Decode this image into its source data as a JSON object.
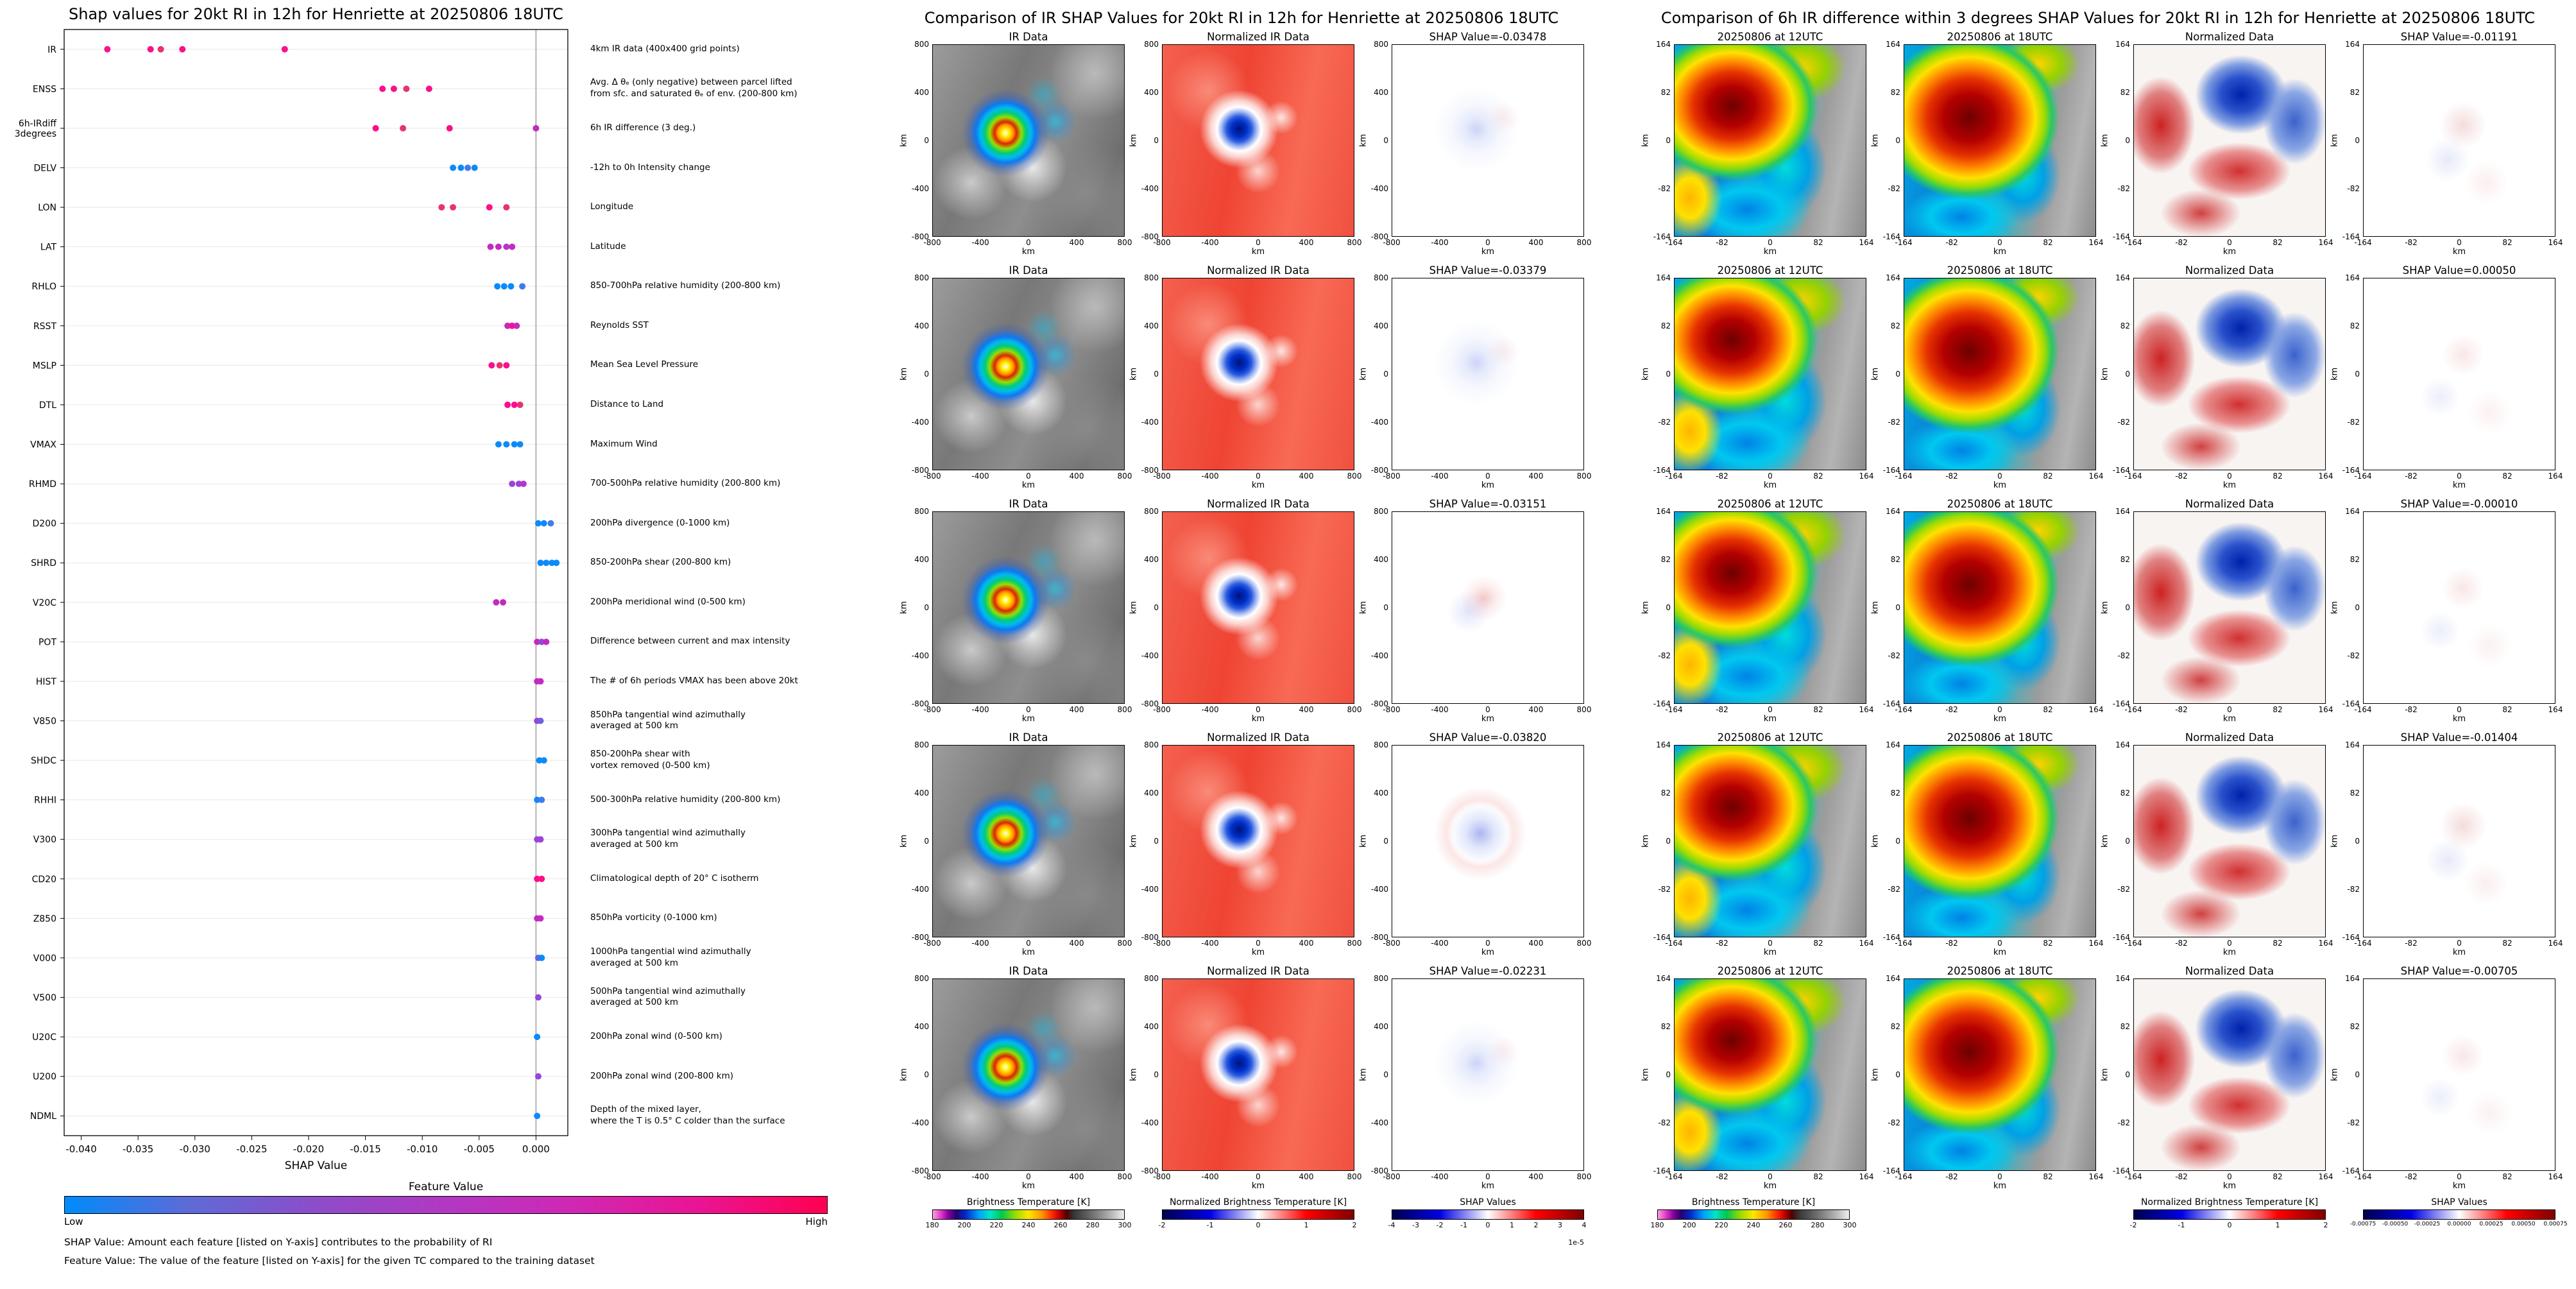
{
  "colors": {
    "background": "#ffffff",
    "zero_line": "#9a9a9a",
    "low_color": "#008bfb",
    "high_color": "#ff0051"
  },
  "chart_data": {
    "type": "scatter",
    "title": "Shap values for 20kt RI in 12h for Henriette at 20250806 18UTC",
    "xlabel": "SHAP Value",
    "xlim": [
      -0.0415,
      0.0028
    ],
    "x_ticks": [
      {
        "v": -0.04,
        "label": "-0.040"
      },
      {
        "v": -0.035,
        "label": "-0.035"
      },
      {
        "v": -0.03,
        "label": "-0.030"
      },
      {
        "v": -0.025,
        "label": "-0.025"
      },
      {
        "v": -0.02,
        "label": "-0.020"
      },
      {
        "v": -0.015,
        "label": "-0.015"
      },
      {
        "v": -0.01,
        "label": "-0.010"
      },
      {
        "v": -0.005,
        "label": "-0.005"
      },
      {
        "v": 0.0,
        "label": "0.000"
      }
    ],
    "colorbar": {
      "title": "Feature Value",
      "low_label": "Low",
      "high_label": "High",
      "stops": [
        "#008bfb",
        "#5f6ad6",
        "#8e4cc9",
        "#b238c3",
        "#cf28b4",
        "#ea1493",
        "#ff0051"
      ]
    },
    "footnotes": [
      "SHAP Value: Amount each feature [listed on Y-axis] contributes to the probability of RI",
      "Feature Value: The value of the feature [listed on Y-axis] for the given TC compared to the training dataset"
    ],
    "features": [
      {
        "label": "IR",
        "desc": "4km IR data (400x400 grid points)",
        "points": [
          [
            -0.0377,
            "#fb0f8c"
          ],
          [
            -0.0339,
            "#fb0f8c"
          ],
          [
            -0.033,
            "#e7336f"
          ],
          [
            -0.0311,
            "#fb0f8c"
          ],
          [
            -0.0221,
            "#fb0f8c"
          ]
        ]
      },
      {
        "label": "ENSS",
        "desc": "Avg. Δ θₑ (only negative) between parcel lifted\nfrom sfc. and saturated θₑ of env. (200-800 km)",
        "points": [
          [
            -0.0135,
            "#fb0f8c"
          ],
          [
            -0.0125,
            "#fb0f8c"
          ],
          [
            -0.0114,
            "#e7336f"
          ],
          [
            -0.0094,
            "#fb0f8c"
          ]
        ]
      },
      {
        "label": "6h-IRdiff\n3degrees",
        "desc": "6h IR difference (3 deg.)",
        "points": [
          [
            -0.0141,
            "#fb0f8c"
          ],
          [
            -0.0117,
            "#e7336f"
          ],
          [
            -0.0076,
            "#fb0f8c"
          ],
          [
            0.0,
            "#c32bc0"
          ]
        ]
      },
      {
        "label": "DELV",
        "desc": "-12h to 0h Intensity change",
        "points": [
          [
            -0.0073,
            "#0c8af9"
          ],
          [
            -0.0066,
            "#0c8af9"
          ],
          [
            -0.006,
            "#3f7bef"
          ],
          [
            -0.0054,
            "#0c8af9"
          ]
        ]
      },
      {
        "label": "LON",
        "desc": "Longitude",
        "points": [
          [
            -0.0083,
            "#e7336f"
          ],
          [
            -0.0073,
            "#e7336f"
          ],
          [
            -0.0041,
            "#fb0f8c"
          ],
          [
            -0.0026,
            "#e7336f"
          ]
        ]
      },
      {
        "label": "LAT",
        "desc": "Latitude",
        "points": [
          [
            -0.004,
            "#c32bc0"
          ],
          [
            -0.0033,
            "#c32bc0"
          ],
          [
            -0.0026,
            "#b535cd"
          ],
          [
            -0.0021,
            "#c32bc0"
          ]
        ]
      },
      {
        "label": "RHLO",
        "desc": "850-700hPa relative humidity (200-800 km)",
        "points": [
          [
            -0.0034,
            "#0c8af9"
          ],
          [
            -0.0028,
            "#0c8af9"
          ],
          [
            -0.0022,
            "#0c8af9"
          ],
          [
            -0.0012,
            "#3f7bef"
          ]
        ]
      },
      {
        "label": "RSST",
        "desc": "Reynolds SST",
        "points": [
          [
            -0.0025,
            "#c32bc0"
          ],
          [
            -0.0021,
            "#fb0f8c"
          ],
          [
            -0.0017,
            "#c32bc0"
          ]
        ]
      },
      {
        "label": "MSLP",
        "desc": "Mean Sea Level Pressure",
        "points": [
          [
            -0.0039,
            "#fb0f8c"
          ],
          [
            -0.0032,
            "#e7336f"
          ],
          [
            -0.0026,
            "#fb0f8c"
          ]
        ]
      },
      {
        "label": "DTL",
        "desc": "Distance to Land",
        "points": [
          [
            -0.0025,
            "#fb0f8c"
          ],
          [
            -0.0019,
            "#fb0f8c"
          ],
          [
            -0.0014,
            "#e7336f"
          ]
        ]
      },
      {
        "label": "VMAX",
        "desc": "Maximum Wind",
        "points": [
          [
            -0.0033,
            "#0c8af9"
          ],
          [
            -0.0026,
            "#0c8af9"
          ],
          [
            -0.0019,
            "#0c8af9"
          ],
          [
            -0.0014,
            "#0c8af9"
          ]
        ]
      },
      {
        "label": "RHMD",
        "desc": "700-500hPa relative humidity (200-800 km)",
        "points": [
          [
            -0.0021,
            "#9a44d8"
          ],
          [
            -0.0015,
            "#9a44d8"
          ],
          [
            -0.0011,
            "#b535cd"
          ]
        ]
      },
      {
        "label": "D200",
        "desc": "200hPa divergence (0-1000 km)",
        "points": [
          [
            0.0002,
            "#0c8af9"
          ],
          [
            0.0007,
            "#0c8af9"
          ],
          [
            0.0013,
            "#3f7bef"
          ]
        ]
      },
      {
        "label": "SHRD",
        "desc": "850-200hPa shear (200-800 km)",
        "points": [
          [
            0.0004,
            "#0c8af9"
          ],
          [
            0.0009,
            "#0c8af9"
          ],
          [
            0.0014,
            "#0c8af9"
          ],
          [
            0.0018,
            "#0c8af9"
          ]
        ]
      },
      {
        "label": "V20C",
        "desc": "200hPa meridional wind (0-500 km)",
        "points": [
          [
            -0.0035,
            "#c32bc0"
          ],
          [
            -0.0029,
            "#c32bc0"
          ]
        ]
      },
      {
        "label": "POT",
        "desc": "Difference between current and max intensity",
        "points": [
          [
            0.0001,
            "#c32bc0"
          ],
          [
            0.0005,
            "#9a44d8"
          ],
          [
            0.0009,
            "#c32bc0"
          ]
        ]
      },
      {
        "label": "HIST",
        "desc": "The # of 6h periods VMAX has been above 20kt",
        "points": [
          [
            0.0001,
            "#c32bc0"
          ],
          [
            0.0004,
            "#c32bc0"
          ]
        ]
      },
      {
        "label": "V850",
        "desc": "850hPa tangential wind azimuthally\naveraged at 500 km",
        "points": [
          [
            0.0001,
            "#9a44d8"
          ],
          [
            0.0004,
            "#6a60e2"
          ]
        ]
      },
      {
        "label": "SHDC",
        "desc": "850-200hPa shear with\nvortex removed (0-500 km)",
        "points": [
          [
            0.0003,
            "#0c8af9"
          ],
          [
            0.0007,
            "#0c8af9"
          ]
        ]
      },
      {
        "label": "RHHI",
        "desc": "500-300hPa relative humidity (200-800 km)",
        "points": [
          [
            0.0001,
            "#0c8af9"
          ],
          [
            0.0005,
            "#3f7bef"
          ]
        ]
      },
      {
        "label": "V300",
        "desc": "300hPa tangential wind azimuthally\naveraged at 500 km",
        "points": [
          [
            0.0001,
            "#9a44d8"
          ],
          [
            0.0004,
            "#9a44d8"
          ]
        ]
      },
      {
        "label": "CD20",
        "desc": "Climatological depth of 20° C isotherm",
        "points": [
          [
            0.0001,
            "#fb0f8c"
          ],
          [
            0.0005,
            "#fb0f8c"
          ]
        ]
      },
      {
        "label": "Z850",
        "desc": "850hPa vorticity (0-1000 km)",
        "points": [
          [
            0.0001,
            "#c32bc0"
          ],
          [
            0.0004,
            "#c32bc0"
          ]
        ]
      },
      {
        "label": "V000",
        "desc": "1000hPa tangential wind azimuthally\naveraged at 500 km",
        "points": [
          [
            0.0002,
            "#6a60e2"
          ],
          [
            0.0005,
            "#0c8af9"
          ]
        ]
      },
      {
        "label": "V500",
        "desc": "500hPa tangential wind azimuthally\naveraged at 500 km",
        "points": [
          [
            0.0002,
            "#9a44d8"
          ]
        ]
      },
      {
        "label": "U20C",
        "desc": "200hPa zonal wind (0-500 km)",
        "points": [
          [
            0.0001,
            "#0c8af9"
          ]
        ]
      },
      {
        "label": "U200",
        "desc": "200hPa zonal wind (200-800 km)",
        "points": [
          [
            0.0002,
            "#9a44d8"
          ]
        ]
      },
      {
        "label": "NDML",
        "desc": "Depth of the mixed layer,\nwhere the T is 0.5° C colder than the surface",
        "points": [
          [
            0.0001,
            "#0c8af9"
          ]
        ]
      }
    ]
  },
  "middle_panel": {
    "title": "Comparison of IR SHAP Values for 20kt RI in 12h for Henriette at 20250806 18UTC",
    "axis_label": "km",
    "tick_labels": [
      "-800",
      "-400",
      "0",
      "400",
      "800"
    ],
    "tile_kinds": [
      "ir",
      "nir",
      "shapm"
    ],
    "rows": [
      {
        "titles": [
          "IR Data",
          "Normalized IR Data",
          "SHAP Value=-0.03478"
        ]
      },
      {
        "titles": [
          "IR Data",
          "Normalized IR Data",
          "SHAP Value=-0.03379"
        ]
      },
      {
        "titles": [
          "IR Data",
          "Normalized IR Data",
          "SHAP Value=-0.03151"
        ]
      },
      {
        "titles": [
          "IR Data",
          "Normalized IR Data",
          "SHAP Value=-0.03820"
        ]
      },
      {
        "titles": [
          "IR Data",
          "Normalized IR Data",
          "SHAP Value=-0.02231"
        ]
      }
    ],
    "colorbars": [
      {
        "title": "Brightness Temperature [K]",
        "type": "bt",
        "ticks": [
          "180",
          "200",
          "220",
          "240",
          "260",
          "280",
          "300"
        ]
      },
      {
        "title": "Normalized Brightness Temperature [K]",
        "type": "seismic",
        "ticks": [
          "-2",
          "-1",
          "0",
          "1",
          "2"
        ]
      },
      {
        "title": "SHAP Values",
        "type": "seismic",
        "ticks": [
          "-4",
          "-3",
          "-2",
          "-1",
          "0",
          "1",
          "2",
          "3",
          "4"
        ],
        "scale_note": "1e-5"
      }
    ]
  },
  "right_panel": {
    "title": "Comparison of 6h IR difference within 3 degrees SHAP Values for 20kt RI in 12h for Henriette at 20250806 18UTC",
    "axis_label": "km",
    "tick_labels": [
      "-164",
      "-82",
      "0",
      "82",
      "164"
    ],
    "tile_kinds": [
      "jet",
      "jet2",
      "nd",
      "shapr"
    ],
    "rows": [
      {
        "titles": [
          "20250806 at 12UTC",
          "20250806 at 18UTC",
          "Normalized Data",
          "SHAP Value=-0.01191"
        ]
      },
      {
        "titles": [
          "20250806 at 12UTC",
          "20250806 at 18UTC",
          "Normalized Data",
          "SHAP Value=0.00050"
        ]
      },
      {
        "titles": [
          "20250806 at 12UTC",
          "20250806 at 18UTC",
          "Normalized Data",
          "SHAP Value=-0.00010"
        ]
      },
      {
        "titles": [
          "20250806 at 12UTC",
          "20250806 at 18UTC",
          "Normalized Data",
          "SHAP Value=-0.01404"
        ]
      },
      {
        "titles": [
          "20250806 at 12UTC",
          "20250806 at 18UTC",
          "Normalized Data",
          "SHAP Value=-0.00705"
        ]
      }
    ],
    "colorbars": [
      {
        "title": "Brightness Temperature [K]",
        "type": "bt",
        "ticks": [
          "180",
          "200",
          "220",
          "240",
          "260",
          "280",
          "300"
        ]
      },
      {
        "title": "Normalized Brightness Temperature [K]",
        "type": "seismic",
        "ticks": [
          "-2",
          "-1",
          "0",
          "1",
          "2"
        ]
      },
      {
        "title": "SHAP Values",
        "type": "seismic",
        "ticks": [
          "-0.00075",
          "-0.00050",
          "-0.00025",
          "0.00000",
          "0.00025",
          "0.00050",
          "0.00075"
        ]
      }
    ]
  }
}
